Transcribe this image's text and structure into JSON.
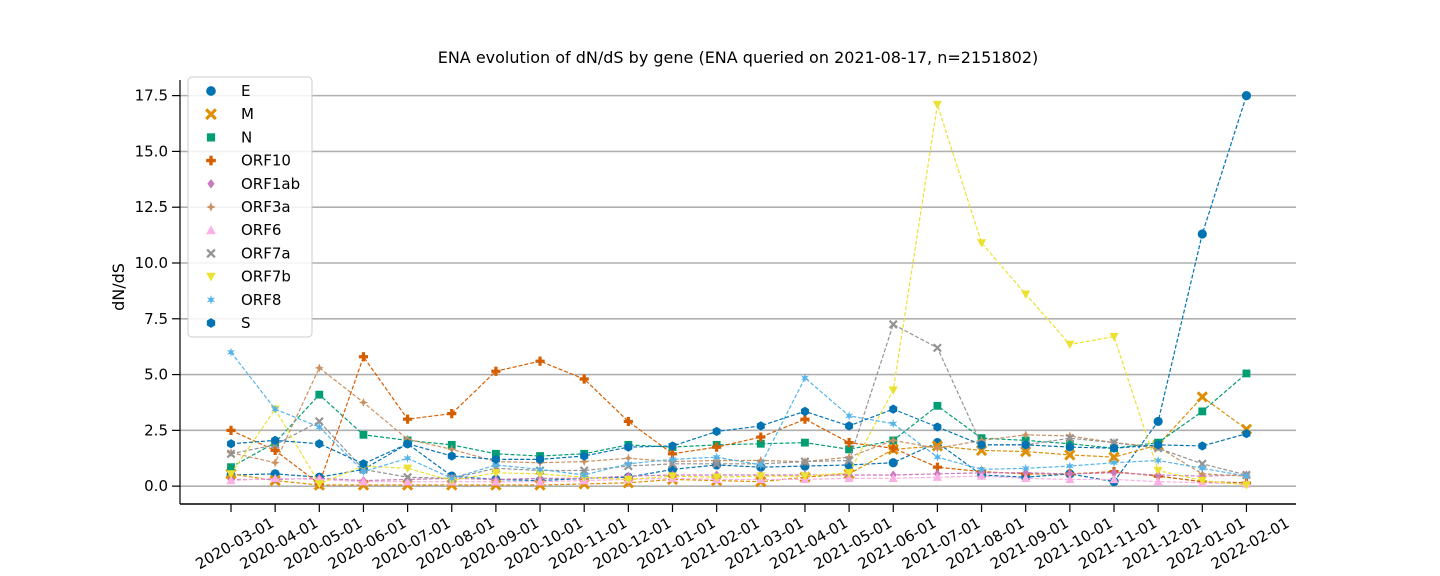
{
  "chart_data": {
    "type": "line",
    "title": "ENA evolution of dN/dS by gene (ENA queried on 2021-08-17, n=2151802)",
    "xlabel": "",
    "ylabel": "dN/dS",
    "ylim": [
      -0.8,
      18.2
    ],
    "yticks": [
      "0.0",
      "2.5",
      "5.0",
      "7.5",
      "10.0",
      "12.5",
      "15.0",
      "17.5"
    ],
    "grid": "horizontal",
    "legend_position": "upper-left",
    "categories": [
      "2020-03-01",
      "2020-04-01",
      "2020-05-01",
      "2020-06-01",
      "2020-07-01",
      "2020-08-01",
      "2020-09-01",
      "2020-10-01",
      "2020-11-01",
      "2020-12-01",
      "2021-01-01",
      "2021-02-01",
      "2021-03-01",
      "2021-04-01",
      "2021-05-01",
      "2021-06-01",
      "2021-07-01",
      "2021-08-01",
      "2021-09-01",
      "2021-10-01",
      "2021-11-01",
      "2021-12-01",
      "2022-01-01",
      "2022-02-01"
    ],
    "series": [
      {
        "name": "E",
        "color": "#0173b2",
        "marker": "circle",
        "values": [
          0.5,
          0.55,
          0.4,
          0.75,
          1.9,
          0.45,
          0.3,
          0.25,
          0.35,
          0.4,
          0.75,
          0.95,
          0.85,
          0.9,
          0.95,
          1.05,
          1.95,
          0.5,
          0.4,
          0.55,
          0.2,
          2.9,
          11.3,
          17.5
        ]
      },
      {
        "name": "M",
        "color": "#de8f05",
        "marker": "x",
        "values": [
          0.55,
          0.25,
          0.05,
          0.05,
          0.05,
          0.05,
          0.05,
          0.05,
          0.1,
          0.15,
          0.3,
          0.25,
          0.2,
          0.4,
          0.55,
          1.65,
          1.8,
          1.6,
          1.55,
          1.4,
          1.3,
          1.85,
          4.0,
          2.55
        ]
      },
      {
        "name": "N",
        "color": "#029e73",
        "marker": "square",
        "values": [
          0.85,
          1.95,
          4.1,
          2.3,
          2.05,
          1.85,
          1.45,
          1.35,
          1.45,
          1.85,
          1.75,
          1.85,
          1.9,
          1.95,
          1.65,
          2.05,
          3.6,
          2.15,
          2.05,
          1.9,
          1.7,
          1.95,
          3.35,
          5.05
        ]
      },
      {
        "name": "ORF10",
        "color": "#d55e00",
        "marker": "plus",
        "values": [
          2.5,
          1.6,
          0.1,
          5.8,
          3.0,
          3.25,
          5.15,
          5.6,
          4.8,
          2.9,
          1.45,
          1.75,
          2.2,
          3.0,
          1.95,
          1.7,
          0.85,
          0.65,
          0.55,
          0.55,
          0.65,
          0.45,
          0.2,
          0.15
        ]
      },
      {
        "name": "ORF1ab",
        "color": "#cc78bc",
        "marker": "diamond",
        "values": [
          0.3,
          0.3,
          0.35,
          0.25,
          0.3,
          0.35,
          0.3,
          0.35,
          0.35,
          0.45,
          0.5,
          0.5,
          0.5,
          0.5,
          0.5,
          0.5,
          0.55,
          0.6,
          0.6,
          0.55,
          0.6,
          0.5,
          0.45,
          0.5
        ]
      },
      {
        "name": "ORF3a",
        "color": "#ca9161",
        "marker": "star",
        "values": [
          1.5,
          1.05,
          5.3,
          3.75,
          2.1,
          1.65,
          1.1,
          1.05,
          1.1,
          1.25,
          1.1,
          1.15,
          1.15,
          1.1,
          1.3,
          2.05,
          1.7,
          2.05,
          2.3,
          2.25,
          1.95,
          1.75,
          0.55,
          0.45
        ]
      },
      {
        "name": "ORF6",
        "color": "#fbafe4",
        "marker": "triangle-up",
        "values": [
          0.25,
          0.35,
          0.3,
          0.2,
          0.2,
          0.2,
          0.2,
          0.2,
          0.25,
          0.3,
          0.35,
          0.3,
          0.3,
          0.3,
          0.35,
          0.35,
          0.4,
          0.45,
          0.35,
          0.3,
          0.3,
          0.2,
          0.15,
          0.1
        ]
      },
      {
        "name": "ORF7a",
        "color": "#949494",
        "marker": "x-thin",
        "values": [
          1.45,
          1.85,
          2.9,
          0.75,
          0.4,
          0.35,
          0.8,
          0.7,
          0.7,
          0.9,
          1.0,
          1.0,
          1.0,
          1.1,
          1.15,
          7.25,
          6.2,
          1.85,
          1.85,
          2.15,
          1.95,
          1.7,
          1.0,
          0.5
        ]
      },
      {
        "name": "ORF7b",
        "color": "#ece133",
        "marker": "triangle-down",
        "values": [
          0.55,
          3.45,
          0.1,
          0.9,
          0.8,
          0.25,
          0.6,
          0.55,
          0.4,
          0.3,
          0.45,
          0.4,
          0.45,
          0.45,
          0.6,
          4.3,
          17.1,
          10.9,
          8.6,
          6.35,
          6.7,
          0.7,
          0.25,
          0.05
        ]
      },
      {
        "name": "ORF8",
        "color": "#56b4e9",
        "marker": "star6",
        "values": [
          6.0,
          3.45,
          2.65,
          0.65,
          1.25,
          0.35,
          0.95,
          0.75,
          0.5,
          1.0,
          1.2,
          1.3,
          0.95,
          4.85,
          3.15,
          2.8,
          1.3,
          0.75,
          0.8,
          0.9,
          1.05,
          1.15,
          0.8,
          0.45
        ]
      },
      {
        "name": "S",
        "color": "#0173b2",
        "marker": "hexagon",
        "values": [
          1.9,
          2.05,
          1.9,
          1.0,
          1.9,
          1.35,
          1.2,
          1.2,
          1.35,
          1.75,
          1.8,
          2.45,
          2.7,
          3.35,
          2.7,
          3.45,
          2.65,
          1.85,
          1.85,
          1.75,
          1.7,
          1.85,
          1.8,
          2.35
        ]
      }
    ]
  }
}
